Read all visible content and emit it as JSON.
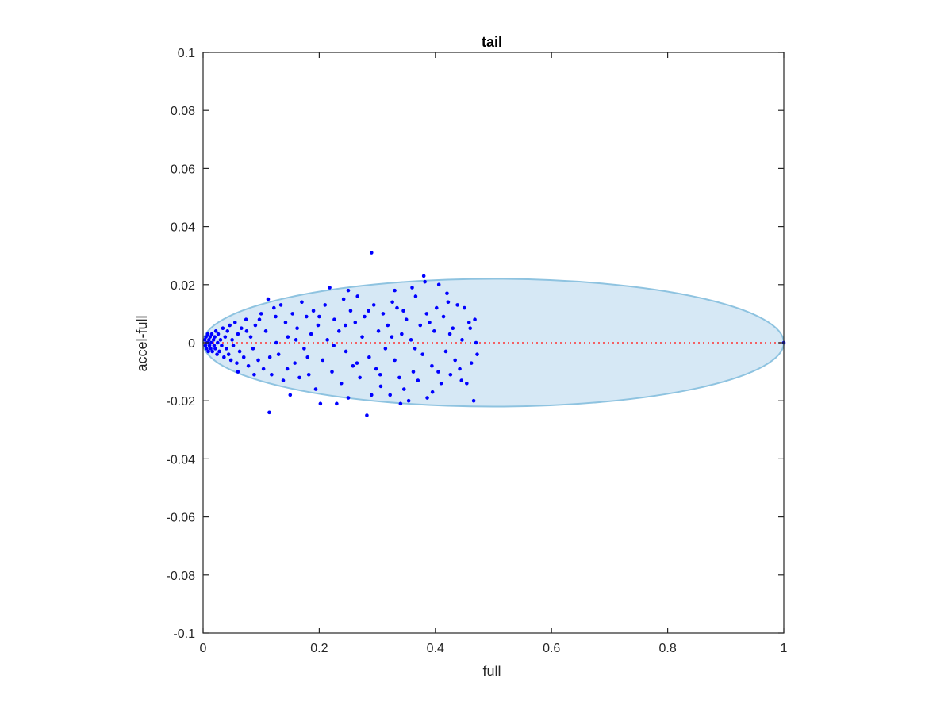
{
  "chart_data": {
    "type": "scatter",
    "title": "tail",
    "xlabel": "full",
    "ylabel": "accel-full",
    "xlim": [
      0,
      1
    ],
    "ylim": [
      -0.1,
      0.1
    ],
    "x_ticks": [
      0,
      0.2,
      0.4,
      0.6,
      0.8,
      1
    ],
    "y_ticks": [
      -0.1,
      -0.08,
      -0.06,
      -0.04,
      -0.02,
      0,
      0.02,
      0.04,
      0.06,
      0.08,
      0.1
    ],
    "x_tick_labels": [
      "0",
      "0.2",
      "0.4",
      "0.6",
      "0.8",
      "1"
    ],
    "y_tick_labels": [
      "-0.1",
      "-0.08",
      "-0.06",
      "-0.04",
      "-0.02",
      "0",
      "0.02",
      "0.04",
      "0.06",
      "0.08",
      "0.1"
    ],
    "grid": false,
    "colors": {
      "points": "#0000ff",
      "reference_line": "#ff3333",
      "ellipse_fill": "#d6e8f5",
      "ellipse_stroke": "#8ec3e0"
    },
    "ellipse": {
      "center": [
        0.5,
        0
      ],
      "x_radius": 0.5,
      "y_radius": 0.022
    },
    "reference_line": {
      "y": 0,
      "x_from": 0,
      "x_to": 1,
      "style": "dotted"
    },
    "series": [
      {
        "points": [
          [
            0.003,
            0.001
          ],
          [
            0.004,
            -0.001
          ],
          [
            0.005,
            0.002
          ],
          [
            0.006,
            -0.002
          ],
          [
            0.007,
            0.0
          ],
          [
            0.008,
            0.003
          ],
          [
            0.009,
            -0.003
          ],
          [
            0.01,
            0.001
          ],
          [
            0.011,
            -0.001
          ],
          [
            0.012,
            0.002
          ],
          [
            0.013,
            -0.002
          ],
          [
            0.014,
            0.0
          ],
          [
            0.015,
            0.003
          ],
          [
            0.016,
            -0.003
          ],
          [
            0.018,
            0.001
          ],
          [
            0.019,
            -0.001
          ],
          [
            0.02,
            0.002
          ],
          [
            0.021,
            -0.002
          ],
          [
            0.022,
            0.004
          ],
          [
            0.024,
            -0.004
          ],
          [
            0.025,
            0.0
          ],
          [
            0.026,
            0.003
          ],
          [
            0.028,
            -0.003
          ],
          [
            0.03,
            0.001
          ],
          [
            0.032,
            -0.001
          ],
          [
            0.034,
            0.005
          ],
          [
            0.036,
            -0.005
          ],
          [
            0.038,
            0.002
          ],
          [
            0.04,
            -0.002
          ],
          [
            0.042,
            0.004
          ],
          [
            0.044,
            -0.004
          ],
          [
            0.046,
            0.006
          ],
          [
            0.048,
            -0.006
          ],
          [
            0.05,
            0.001
          ],
          [
            0.052,
            -0.001
          ],
          [
            0.055,
            0.007
          ],
          [
            0.058,
            -0.007
          ],
          [
            0.06,
            0.003
          ],
          [
            0.063,
            -0.003
          ],
          [
            0.066,
            0.005
          ],
          [
            0.07,
            -0.005
          ],
          [
            0.074,
            0.008
          ],
          [
            0.078,
            -0.008
          ],
          [
            0.082,
            0.002
          ],
          [
            0.086,
            -0.002
          ],
          [
            0.09,
            0.006
          ],
          [
            0.095,
            -0.006
          ],
          [
            0.1,
            0.01
          ],
          [
            0.104,
            -0.009
          ],
          [
            0.108,
            0.004
          ],
          [
            0.112,
            0.015
          ],
          [
            0.114,
            -0.024
          ],
          [
            0.118,
            -0.011
          ],
          [
            0.122,
            0.012
          ],
          [
            0.126,
            0.0
          ],
          [
            0.13,
            -0.004
          ],
          [
            0.134,
            0.013
          ],
          [
            0.138,
            -0.013
          ],
          [
            0.142,
            0.007
          ],
          [
            0.146,
            0.002
          ],
          [
            0.15,
            -0.018
          ],
          [
            0.154,
            0.01
          ],
          [
            0.158,
            -0.007
          ],
          [
            0.162,
            0.005
          ],
          [
            0.166,
            -0.012
          ],
          [
            0.17,
            0.014
          ],
          [
            0.174,
            -0.002
          ],
          [
            0.178,
            0.009
          ],
          [
            0.182,
            -0.011
          ],
          [
            0.186,
            0.003
          ],
          [
            0.19,
            0.011
          ],
          [
            0.194,
            -0.016
          ],
          [
            0.198,
            0.006
          ],
          [
            0.202,
            -0.021
          ],
          [
            0.206,
            -0.006
          ],
          [
            0.21,
            0.013
          ],
          [
            0.214,
            0.001
          ],
          [
            0.218,
            0.019
          ],
          [
            0.222,
            -0.01
          ],
          [
            0.226,
            0.008
          ],
          [
            0.23,
            -0.021
          ],
          [
            0.234,
            0.004
          ],
          [
            0.238,
            -0.014
          ],
          [
            0.242,
            0.015
          ],
          [
            0.246,
            -0.003
          ],
          [
            0.25,
            -0.019
          ],
          [
            0.254,
            0.011
          ],
          [
            0.258,
            -0.008
          ],
          [
            0.262,
            0.007
          ],
          [
            0.266,
            0.016
          ],
          [
            0.27,
            -0.012
          ],
          [
            0.274,
            0.002
          ],
          [
            0.278,
            0.009
          ],
          [
            0.282,
            -0.025
          ],
          [
            0.286,
            -0.005
          ],
          [
            0.29,
            0.031
          ],
          [
            0.294,
            0.013
          ],
          [
            0.298,
            -0.009
          ],
          [
            0.302,
            0.004
          ],
          [
            0.306,
            -0.015
          ],
          [
            0.31,
            0.01
          ],
          [
            0.314,
            -0.002
          ],
          [
            0.318,
            0.006
          ],
          [
            0.322,
            -0.018
          ],
          [
            0.326,
            0.014
          ],
          [
            0.33,
            -0.006
          ],
          [
            0.334,
            0.012
          ],
          [
            0.338,
            -0.012
          ],
          [
            0.342,
            0.003
          ],
          [
            0.346,
            -0.016
          ],
          [
            0.35,
            0.008
          ],
          [
            0.354,
            -0.02
          ],
          [
            0.358,
            0.001
          ],
          [
            0.362,
            -0.01
          ],
          [
            0.366,
            0.016
          ],
          [
            0.37,
            -0.013
          ],
          [
            0.374,
            0.006
          ],
          [
            0.378,
            -0.004
          ],
          [
            0.38,
            0.023
          ],
          [
            0.382,
            0.021
          ],
          [
            0.386,
            -0.019
          ],
          [
            0.39,
            0.007
          ],
          [
            0.394,
            -0.008
          ],
          [
            0.398,
            0.004
          ],
          [
            0.402,
            0.012
          ],
          [
            0.406,
            0.02
          ],
          [
            0.41,
            -0.014
          ],
          [
            0.414,
            0.009
          ],
          [
            0.418,
            -0.003
          ],
          [
            0.422,
            0.014
          ],
          [
            0.426,
            -0.011
          ],
          [
            0.43,
            0.005
          ],
          [
            0.434,
            -0.006
          ],
          [
            0.438,
            0.013
          ],
          [
            0.442,
            -0.009
          ],
          [
            0.446,
            0.001
          ],
          [
            0.45,
            0.012
          ],
          [
            0.454,
            -0.014
          ],
          [
            0.458,
            0.007
          ],
          [
            0.462,
            -0.007
          ],
          [
            0.466,
            -0.02
          ],
          [
            0.468,
            0.008
          ],
          [
            0.47,
            0.0
          ],
          [
            0.472,
            -0.004
          ],
          [
            1.0,
            0.0
          ],
          [
            0.06,
            -0.01
          ],
          [
            0.075,
            0.004
          ],
          [
            0.088,
            -0.011
          ],
          [
            0.097,
            0.008
          ],
          [
            0.115,
            -0.005
          ],
          [
            0.125,
            0.009
          ],
          [
            0.145,
            -0.009
          ],
          [
            0.16,
            0.001
          ],
          [
            0.18,
            -0.005
          ],
          [
            0.2,
            0.009
          ],
          [
            0.225,
            -0.001
          ],
          [
            0.245,
            0.006
          ],
          [
            0.265,
            -0.007
          ],
          [
            0.285,
            0.011
          ],
          [
            0.305,
            -0.011
          ],
          [
            0.325,
            0.002
          ],
          [
            0.345,
            0.011
          ],
          [
            0.365,
            -0.002
          ],
          [
            0.385,
            0.01
          ],
          [
            0.405,
            -0.01
          ],
          [
            0.425,
            0.003
          ],
          [
            0.445,
            -0.013
          ],
          [
            0.46,
            0.005
          ],
          [
            0.33,
            0.018
          ],
          [
            0.36,
            0.019
          ],
          [
            0.34,
            -0.021
          ],
          [
            0.395,
            -0.017
          ],
          [
            0.42,
            0.017
          ],
          [
            0.29,
            -0.018
          ],
          [
            0.25,
            0.018
          ]
        ]
      }
    ]
  }
}
